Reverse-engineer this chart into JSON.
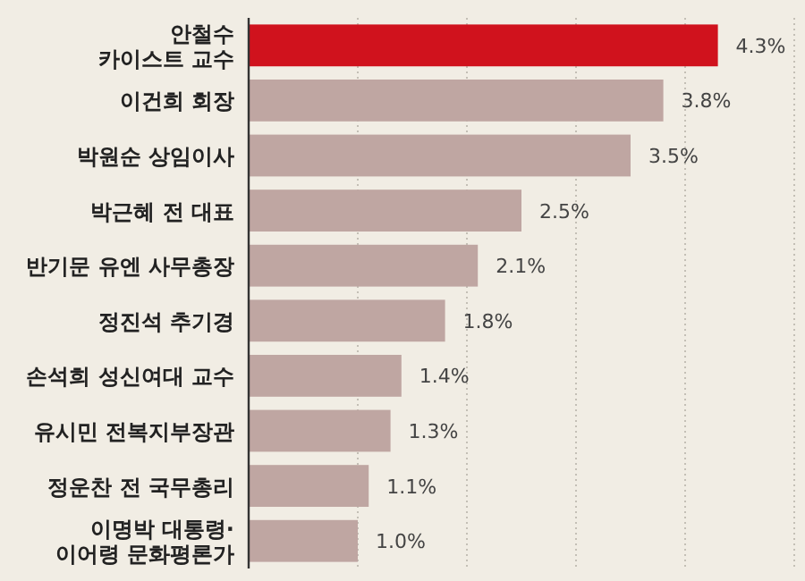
{
  "chart_data": {
    "type": "bar",
    "orientation": "horizontal",
    "categories": [
      "안철수\n카이스트 교수",
      "이건희 회장",
      "박원순 상임이사",
      "박근혜 전 대표",
      "반기문 유엔 사무총장",
      "정진석 추기경",
      "손석희 성신여대 교수",
      "유시민 전복지부장관",
      "정운찬 전 국무총리",
      "이명박 대통령·\n이어령 문화평론가"
    ],
    "values": [
      4.3,
      3.8,
      3.5,
      2.5,
      2.1,
      1.8,
      1.4,
      1.3,
      1.1,
      1.0
    ],
    "value_labels": [
      "4.3%",
      "3.8%",
      "3.5%",
      "2.5%",
      "2.1%",
      "1.8%",
      "1.4%",
      "1.3%",
      "1.1%",
      "1.0%"
    ],
    "colors": [
      "#d0121d",
      "#bfa6a2",
      "#bfa6a2",
      "#bfa6a2",
      "#bfa6a2",
      "#bfa6a2",
      "#bfa6a2",
      "#bfa6a2",
      "#bfa6a2",
      "#bfa6a2"
    ],
    "xlim": [
      0,
      5
    ],
    "xticks": [
      {
        "value": 1,
        "label": null
      },
      {
        "value": 2,
        "label": null
      },
      {
        "value": 3,
        "label": null
      },
      {
        "value": 4,
        "label": null
      },
      {
        "value": 5,
        "label": null
      }
    ],
    "grid": "x",
    "tick_labels": "y"
  }
}
